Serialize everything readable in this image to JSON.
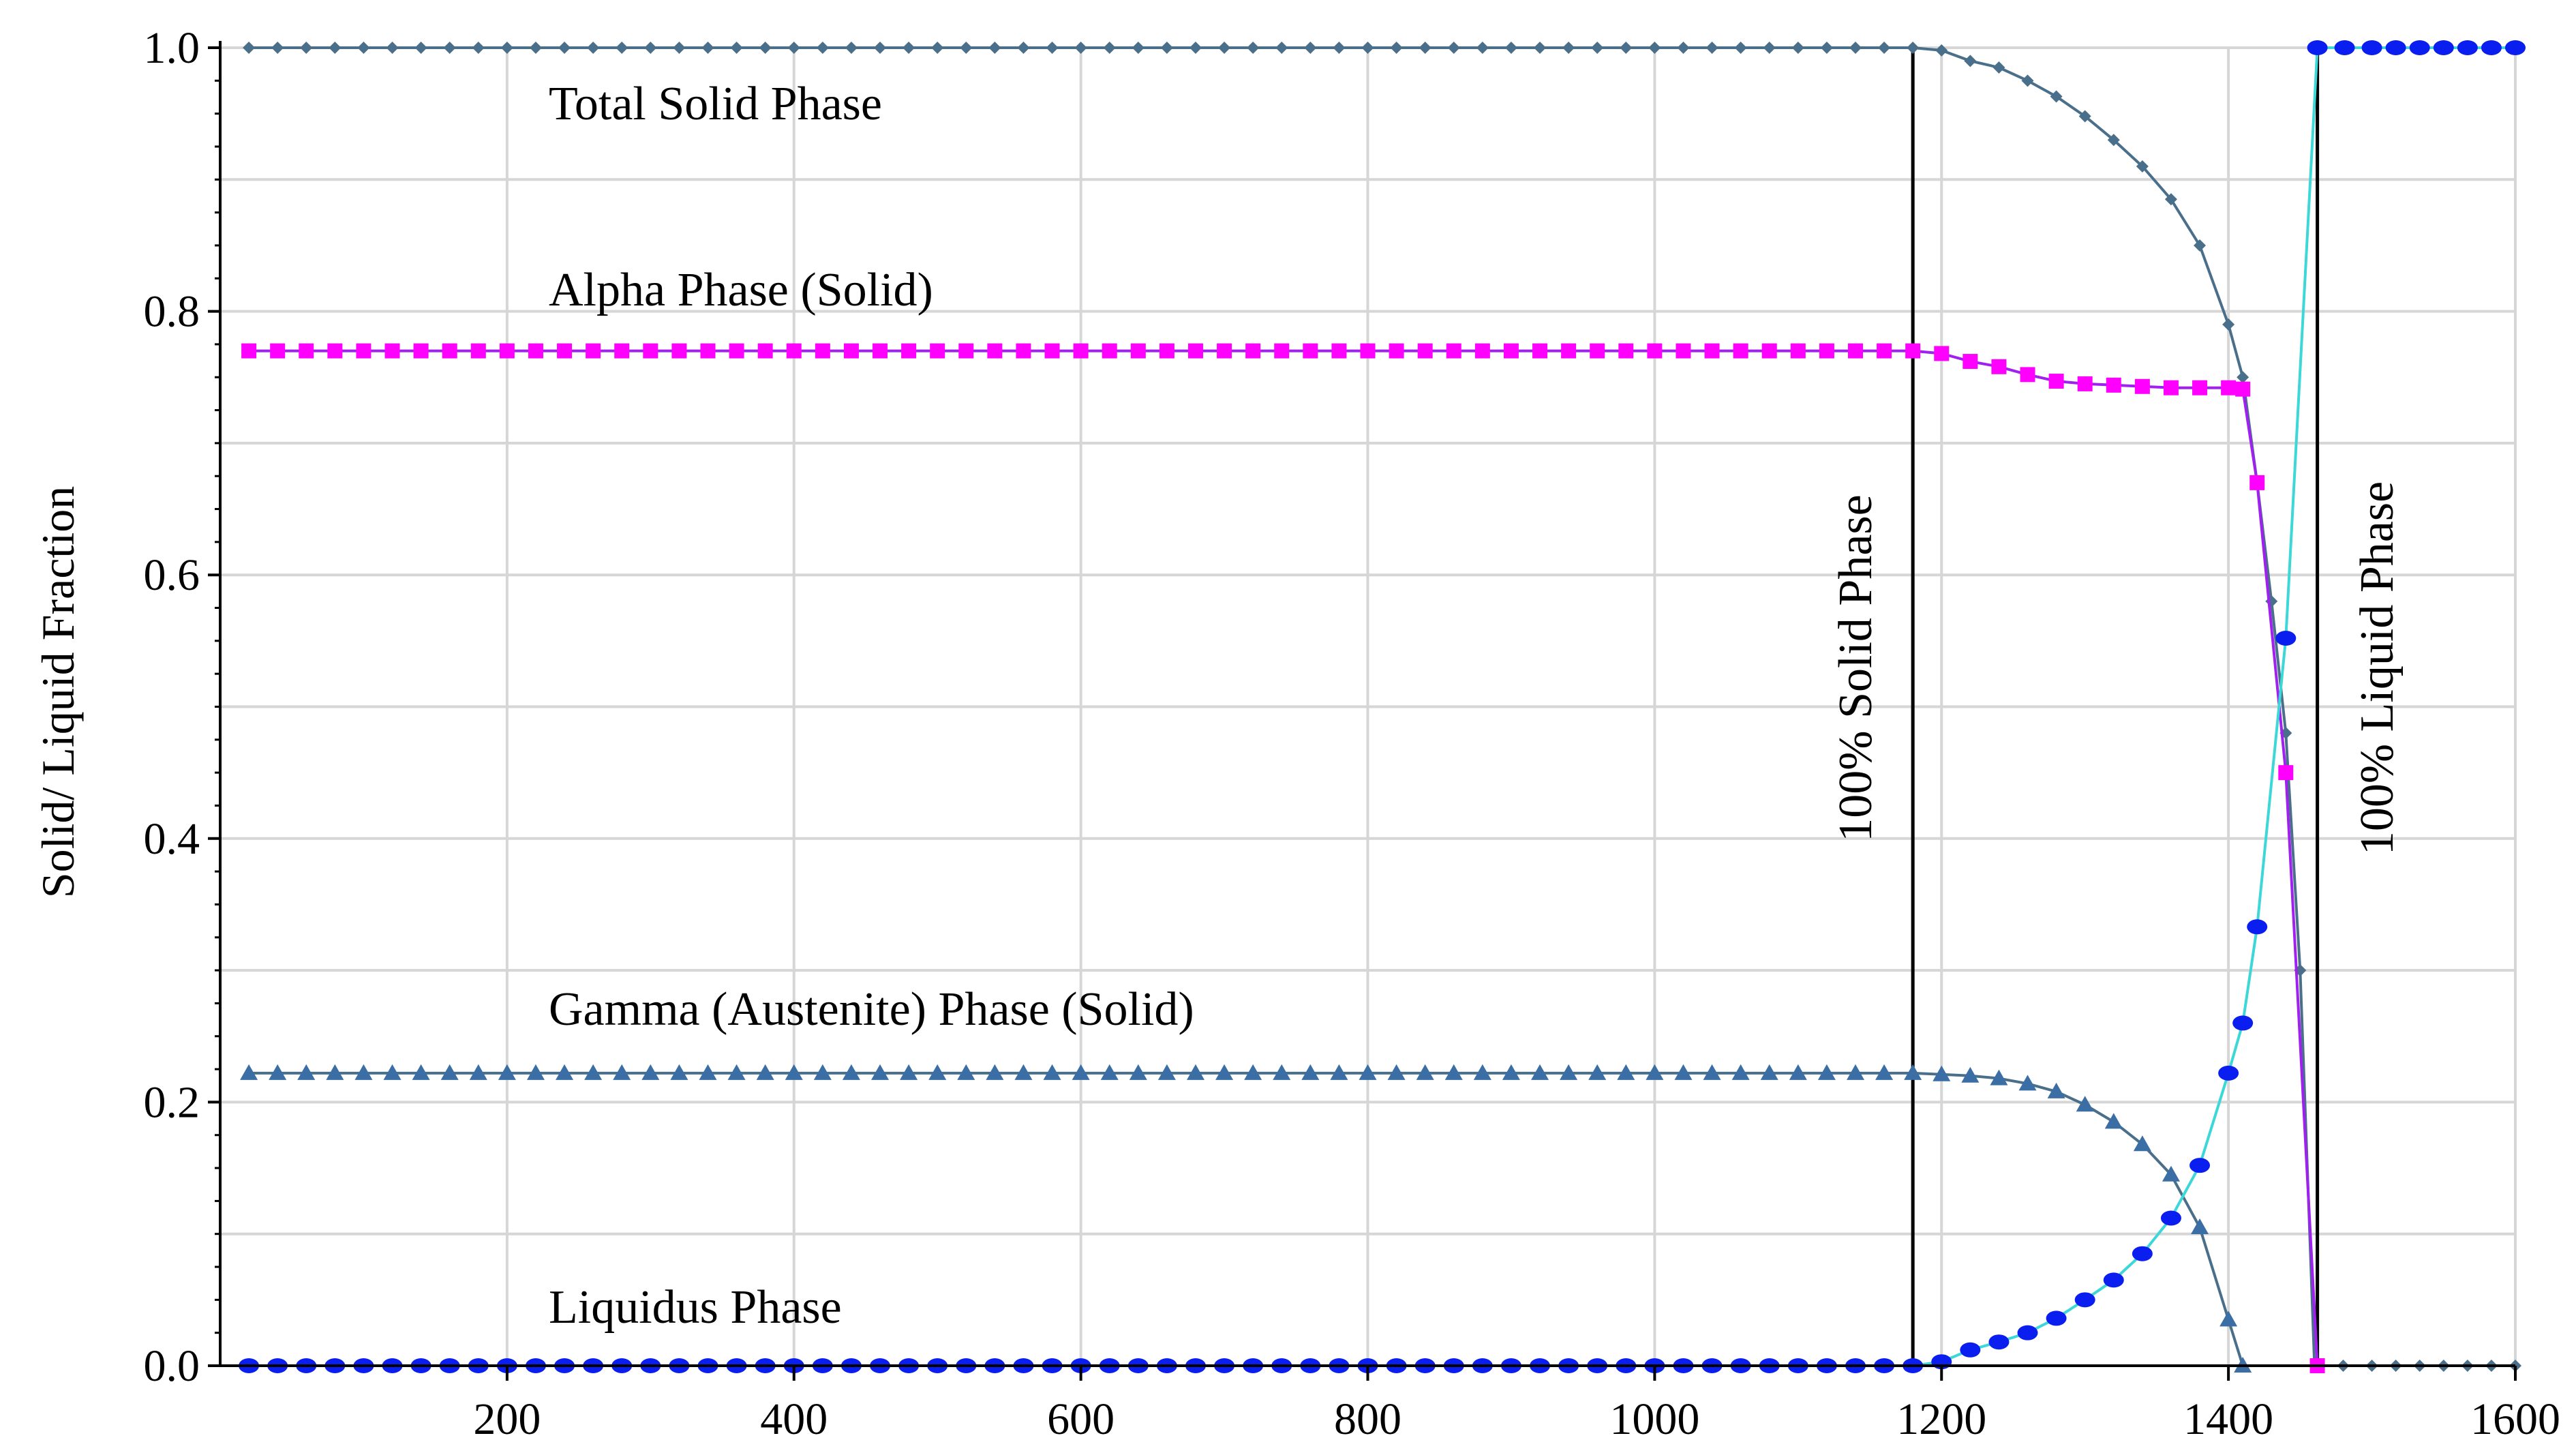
{
  "chart_data": {
    "type": "line",
    "title": "",
    "xlabel": "",
    "ylabel": "Solid/ Liquid Fraction",
    "xlim": [
      0,
      1600
    ],
    "ylim": [
      0,
      1.0
    ],
    "x_ticks": [
      200,
      400,
      600,
      800,
      1000,
      1200,
      1400,
      1600
    ],
    "y_ticks": [
      0.0,
      0.2,
      0.4,
      0.6,
      0.8,
      1.0
    ],
    "x_tick_labels": [
      "200",
      "400",
      "600",
      "800",
      "1000",
      "1200",
      "1400",
      "1600"
    ],
    "y_tick_labels": [
      "0.0",
      "0.2",
      "0.4",
      "0.6",
      "0.8",
      "1.0"
    ],
    "grid": true,
    "vlines": [
      {
        "x": 1180,
        "label": "100% Solid Phase"
      },
      {
        "x": 1462,
        "label": "100% Liquid Phase"
      }
    ],
    "annotations": {
      "total_solid": "Total Solid Phase",
      "alpha": "Alpha Phase (Solid)",
      "gamma": "Gamma (Austenite) Phase (Solid)",
      "liquid": "Liquidus Phase"
    },
    "series": [
      {
        "name": "Total Solid Phase",
        "color": "#4a6f8a",
        "marker": "diamond",
        "points": [
          [
            20,
            1.0
          ],
          [
            100,
            1.0
          ],
          [
            200,
            1.0
          ],
          [
            300,
            1.0
          ],
          [
            400,
            1.0
          ],
          [
            500,
            1.0
          ],
          [
            600,
            1.0
          ],
          [
            700,
            1.0
          ],
          [
            800,
            1.0
          ],
          [
            900,
            1.0
          ],
          [
            1000,
            1.0
          ],
          [
            1100,
            1.0
          ],
          [
            1180,
            1.0
          ],
          [
            1200,
            0.998
          ],
          [
            1220,
            0.99
          ],
          [
            1240,
            0.985
          ],
          [
            1260,
            0.975
          ],
          [
            1280,
            0.963
          ],
          [
            1300,
            0.948
          ],
          [
            1320,
            0.93
          ],
          [
            1340,
            0.91
          ],
          [
            1360,
            0.885
          ],
          [
            1380,
            0.85
          ],
          [
            1400,
            0.79
          ],
          [
            1410,
            0.75
          ],
          [
            1420,
            0.67
          ],
          [
            1430,
            0.58
          ],
          [
            1440,
            0.48
          ],
          [
            1450,
            0.3
          ],
          [
            1460,
            0.0
          ],
          [
            1500,
            0.0
          ],
          [
            1550,
            0.0
          ],
          [
            1600,
            0.0
          ]
        ]
      },
      {
        "name": "Alpha Phase (Solid)",
        "color": "#ff00ff",
        "line_color": "#a020f0",
        "marker": "square",
        "points": [
          [
            20,
            0.77
          ],
          [
            100,
            0.77
          ],
          [
            200,
            0.77
          ],
          [
            300,
            0.77
          ],
          [
            400,
            0.77
          ],
          [
            500,
            0.77
          ],
          [
            600,
            0.77
          ],
          [
            700,
            0.77
          ],
          [
            800,
            0.77
          ],
          [
            900,
            0.77
          ],
          [
            1000,
            0.77
          ],
          [
            1100,
            0.77
          ],
          [
            1180,
            0.77
          ],
          [
            1200,
            0.768
          ],
          [
            1220,
            0.762
          ],
          [
            1240,
            0.758
          ],
          [
            1260,
            0.752
          ],
          [
            1280,
            0.747
          ],
          [
            1300,
            0.745
          ],
          [
            1320,
            0.744
          ],
          [
            1340,
            0.743
          ],
          [
            1360,
            0.742
          ],
          [
            1380,
            0.742
          ],
          [
            1400,
            0.742
          ],
          [
            1410,
            0.741
          ],
          [
            1420,
            0.67
          ],
          [
            1440,
            0.45
          ],
          [
            1462,
            0.0
          ]
        ]
      },
      {
        "name": "Gamma (Austenite) Phase (Solid)",
        "color": "#3a6ea5",
        "line_color": "#4a6f8a",
        "marker": "triangle",
        "points": [
          [
            20,
            0.222
          ],
          [
            100,
            0.222
          ],
          [
            200,
            0.222
          ],
          [
            300,
            0.222
          ],
          [
            400,
            0.222
          ],
          [
            500,
            0.222
          ],
          [
            600,
            0.222
          ],
          [
            700,
            0.222
          ],
          [
            800,
            0.222
          ],
          [
            900,
            0.222
          ],
          [
            1000,
            0.222
          ],
          [
            1100,
            0.222
          ],
          [
            1180,
            0.222
          ],
          [
            1200,
            0.221
          ],
          [
            1220,
            0.22
          ],
          [
            1240,
            0.218
          ],
          [
            1260,
            0.214
          ],
          [
            1280,
            0.208
          ],
          [
            1300,
            0.198
          ],
          [
            1320,
            0.185
          ],
          [
            1340,
            0.168
          ],
          [
            1360,
            0.145
          ],
          [
            1380,
            0.105
          ],
          [
            1400,
            0.035
          ],
          [
            1410,
            0.0
          ]
        ]
      },
      {
        "name": "Liquidus Phase",
        "color": "#0a1ef0",
        "line_color": "#3cd7d7",
        "marker": "circle",
        "points": [
          [
            20,
            0.0
          ],
          [
            100,
            0.0
          ],
          [
            200,
            0.0
          ],
          [
            300,
            0.0
          ],
          [
            400,
            0.0
          ],
          [
            500,
            0.0
          ],
          [
            600,
            0.0
          ],
          [
            700,
            0.0
          ],
          [
            800,
            0.0
          ],
          [
            900,
            0.0
          ],
          [
            1000,
            0.0
          ],
          [
            1100,
            0.0
          ],
          [
            1180,
            0.0
          ],
          [
            1200,
            0.003
          ],
          [
            1220,
            0.012
          ],
          [
            1240,
            0.018
          ],
          [
            1260,
            0.025
          ],
          [
            1280,
            0.036
          ],
          [
            1300,
            0.05
          ],
          [
            1320,
            0.065
          ],
          [
            1340,
            0.085
          ],
          [
            1360,
            0.112
          ],
          [
            1380,
            0.152
          ],
          [
            1400,
            0.222
          ],
          [
            1410,
            0.26
          ],
          [
            1420,
            0.333
          ],
          [
            1440,
            0.552
          ],
          [
            1462,
            1.0
          ],
          [
            1500,
            1.0
          ],
          [
            1550,
            1.0
          ],
          [
            1600,
            1.0
          ]
        ]
      }
    ]
  }
}
